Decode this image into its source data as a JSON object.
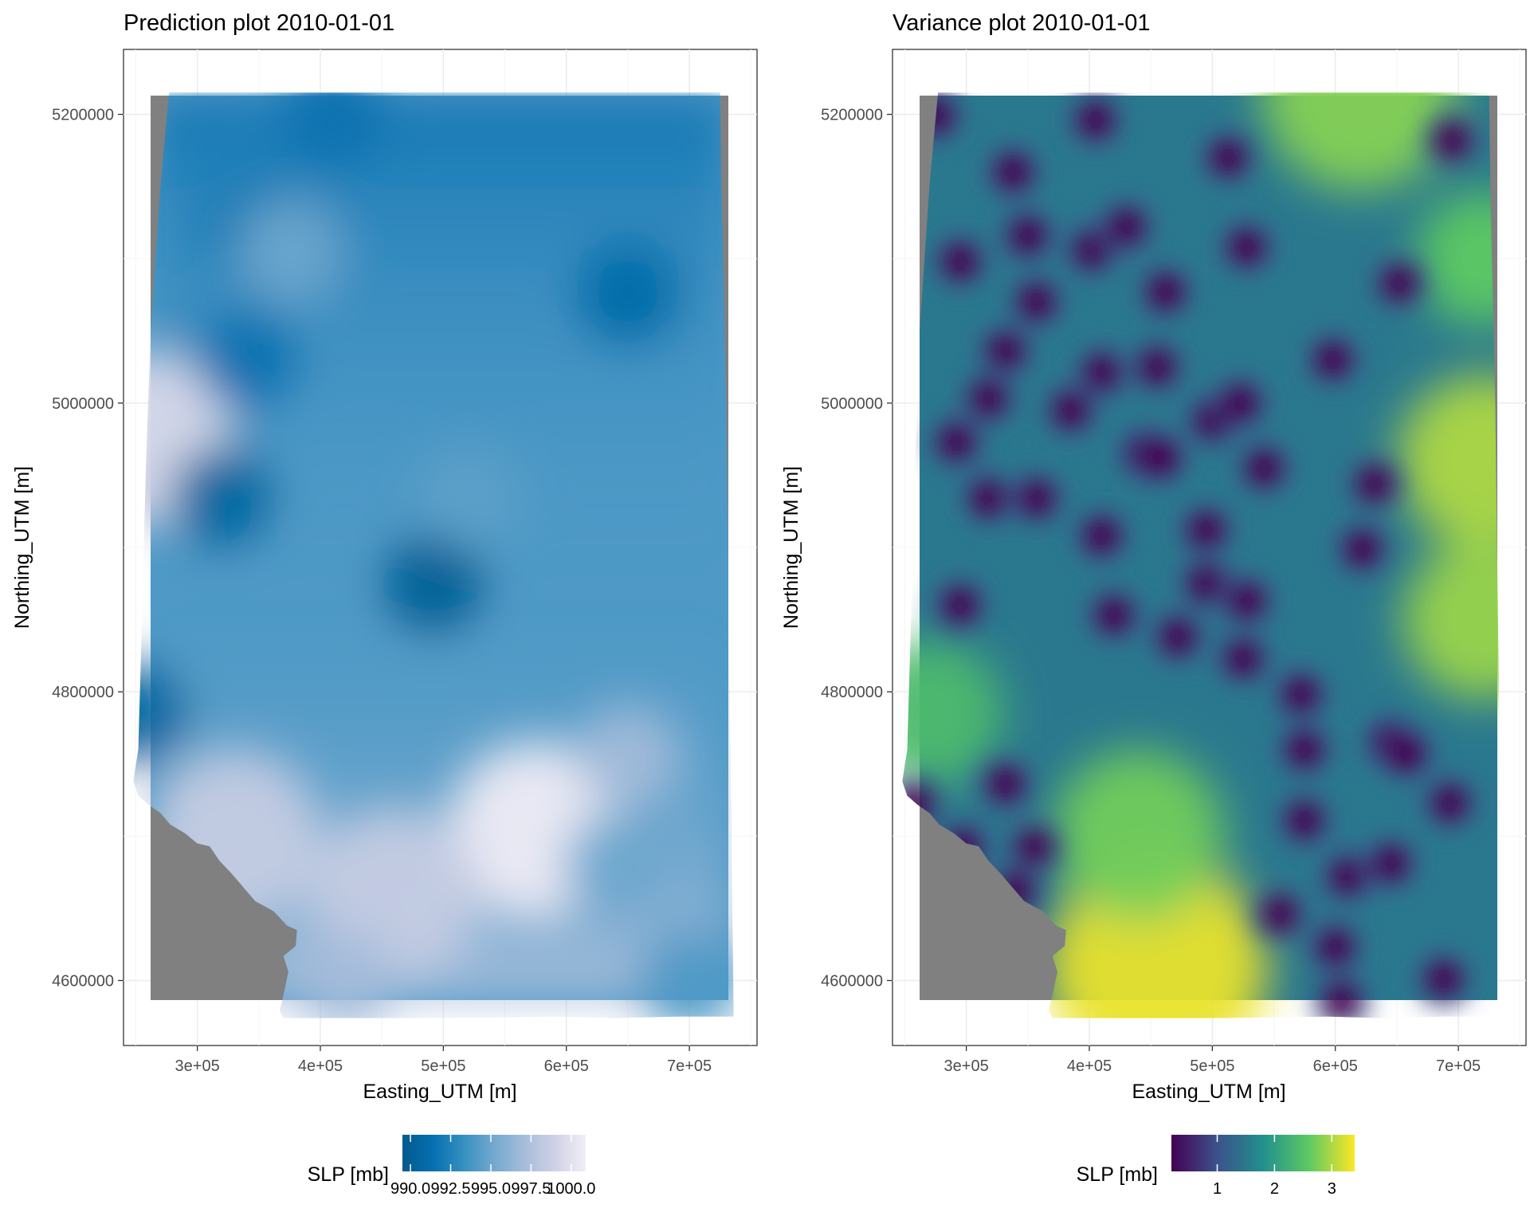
{
  "chart_data": [
    {
      "type": "heatmap",
      "title": "Prediction plot 2010-01-01",
      "xlabel": "Easting_UTM [m]",
      "ylabel": "Northing_UTM [m]",
      "xlim": [
        240000,
        755000
      ],
      "ylim": [
        4555000,
        5245000
      ],
      "x_ticks": [
        300000,
        400000,
        500000,
        600000,
        700000
      ],
      "x_tick_labels": [
        "3e+05",
        "4e+05",
        "5e+05",
        "6e+05",
        "7e+05"
      ],
      "y_ticks": [
        4600000,
        4800000,
        5000000,
        5200000
      ],
      "y_tick_labels": [
        "4600000",
        "4800000",
        "5000000",
        "5200000"
      ],
      "grid": true,
      "colorscale": [
        "#045a8d",
        "#0570b0",
        "#3690c0",
        "#74a9cf",
        "#a6bddb",
        "#d0d1e6",
        "#f1eef6"
      ],
      "legend": {
        "title": "SLP [mb]",
        "position": "bottom",
        "min": 989.5,
        "max": 1000.9,
        "ticks": [
          990.0,
          992.5,
          995.0,
          997.5,
          1000.0
        ],
        "tick_labels": [
          "990.0",
          "992.5",
          "995.0",
          "997.5",
          "1000.0"
        ]
      },
      "land_mask_color": "#808080",
      "base_value": 994.0,
      "features": [
        {
          "x": 258000,
          "y": 4975000,
          "value": 999.5
        },
        {
          "x": 320000,
          "y": 4935000,
          "value": 990.5
        },
        {
          "x": 492000,
          "y": 4875000,
          "value": 990.0
        },
        {
          "x": 340000,
          "y": 5030000,
          "value": 991.5
        },
        {
          "x": 350000,
          "y": 5120000,
          "value": 992.0
        },
        {
          "x": 650000,
          "y": 5075000,
          "value": 991.0
        },
        {
          "x": 410000,
          "y": 5200000,
          "value": 991.5
        },
        {
          "x": 375000,
          "y": 5105000,
          "value": 995.0
        },
        {
          "x": 575000,
          "y": 4705000,
          "value": 1000.8
        },
        {
          "x": 460000,
          "y": 4660000,
          "value": 998.5
        },
        {
          "x": 330000,
          "y": 4700000,
          "value": 998.5
        },
        {
          "x": 420000,
          "y": 4600000,
          "value": 997.0
        },
        {
          "x": 650000,
          "y": 4755000,
          "value": 997.0
        },
        {
          "x": 640000,
          "y": 4680000,
          "value": 995.0
        },
        {
          "x": 520000,
          "y": 4935000,
          "value": 994.5
        },
        {
          "x": 700000,
          "y": 4600000,
          "value": 994.0
        },
        {
          "x": 250000,
          "y": 4785000,
          "value": 990.5
        }
      ]
    },
    {
      "type": "heatmap",
      "title": "Variance plot 2010-01-01",
      "xlabel": "Easting_UTM [m]",
      "ylabel": "Northing_UTM [m]",
      "xlim": [
        240000,
        755000
      ],
      "ylim": [
        4555000,
        5245000
      ],
      "x_ticks": [
        300000,
        400000,
        500000,
        600000,
        700000
      ],
      "x_tick_labels": [
        "3e+05",
        "4e+05",
        "5e+05",
        "6e+05",
        "7e+05"
      ],
      "y_ticks": [
        4600000,
        4800000,
        5000000,
        5200000
      ],
      "y_tick_labels": [
        "4600000",
        "4800000",
        "5000000",
        "5200000"
      ],
      "grid": true,
      "colorscale": [
        "#440154",
        "#3b528b",
        "#21908d",
        "#5dc963",
        "#fde725"
      ],
      "legend": {
        "title": "SLP [mb]",
        "position": "bottom",
        "min": 0.2,
        "max": 3.4,
        "ticks": [
          1,
          2,
          3
        ],
        "tick_labels": [
          "1",
          "2",
          "3"
        ]
      },
      "land_mask_color": "#808080",
      "stations": [
        [
          275000,
          5199000
        ],
        [
          295000,
          5098000
        ],
        [
          338000,
          5160000
        ],
        [
          350000,
          5116000
        ],
        [
          357000,
          5070000
        ],
        [
          332000,
          5036000
        ],
        [
          318000,
          5003000
        ],
        [
          292000,
          4973000
        ],
        [
          318000,
          4934000
        ],
        [
          357000,
          4934000
        ],
        [
          295000,
          4860000
        ],
        [
          402000,
          5106000
        ],
        [
          405000,
          5196000
        ],
        [
          430000,
          5122000
        ],
        [
          410000,
          5021000
        ],
        [
          385000,
          4995000
        ],
        [
          410000,
          4908000
        ],
        [
          420000,
          4853000
        ],
        [
          462000,
          5077000
        ],
        [
          455000,
          5025000
        ],
        [
          445000,
          4965000
        ],
        [
          458000,
          4962000
        ],
        [
          472000,
          4838000
        ],
        [
          495000,
          4912000
        ],
        [
          495000,
          4875000
        ],
        [
          513000,
          5170000
        ],
        [
          528000,
          5108000
        ],
        [
          500000,
          4988000
        ],
        [
          523000,
          5000000
        ],
        [
          542000,
          4955000
        ],
        [
          528000,
          4863000
        ],
        [
          525000,
          4823000
        ],
        [
          572000,
          4798000
        ],
        [
          575000,
          4760000
        ],
        [
          575000,
          4711000
        ],
        [
          598000,
          5030000
        ],
        [
          632000,
          4944000
        ],
        [
          622000,
          4899000
        ],
        [
          645000,
          4765000
        ],
        [
          658000,
          4757000
        ],
        [
          610000,
          4672000
        ],
        [
          645000,
          4681000
        ],
        [
          555000,
          4646000
        ],
        [
          600000,
          4623000
        ],
        [
          605000,
          4586000
        ],
        [
          688000,
          4601000
        ],
        [
          693000,
          4723000
        ],
        [
          652000,
          5083000
        ],
        [
          695000,
          5182000
        ],
        [
          258000,
          4722000
        ],
        [
          332000,
          4736000
        ],
        [
          355000,
          4692000
        ],
        [
          340000,
          4662000
        ],
        [
          297000,
          4692000
        ]
      ]
    }
  ]
}
